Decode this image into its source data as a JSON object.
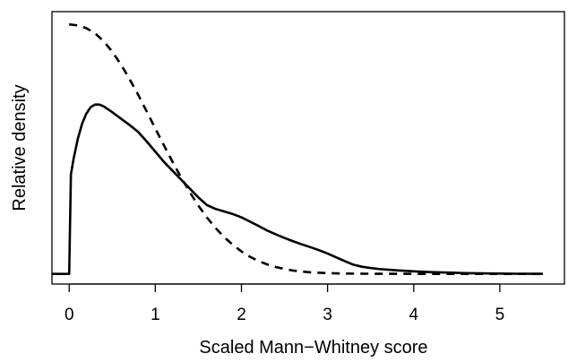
{
  "chart_data": {
    "type": "line",
    "title": "",
    "xlabel": "Scaled Mann−Whitney score",
    "ylabel": "Relative density",
    "xlim": [
      -0.2,
      5.75
    ],
    "ylim": [
      -0.04,
      1.03
    ],
    "x_ticks": [
      0,
      1,
      2,
      3,
      4,
      5
    ],
    "x_tick_labels": [
      "0",
      "1",
      "2",
      "3",
      "4",
      "5"
    ],
    "y_ticks_shown": false,
    "grid": false,
    "legend": "none",
    "series": [
      {
        "style": "solid",
        "color": "#000000",
        "points": [
          [
            -0.2,
            0.0
          ],
          [
            0.0,
            0.0
          ],
          [
            0.0,
            0.0
          ],
          [
            0.02,
            0.39
          ],
          [
            0.05,
            0.45
          ],
          [
            0.1,
            0.53
          ],
          [
            0.15,
            0.59
          ],
          [
            0.2,
            0.63
          ],
          [
            0.25,
            0.655
          ],
          [
            0.3,
            0.665
          ],
          [
            0.35,
            0.665
          ],
          [
            0.4,
            0.658
          ],
          [
            0.5,
            0.635
          ],
          [
            0.6,
            0.61
          ],
          [
            0.7,
            0.585
          ],
          [
            0.8,
            0.558
          ],
          [
            0.9,
            0.52
          ],
          [
            1.0,
            0.48
          ],
          [
            1.1,
            0.44
          ],
          [
            1.2,
            0.405
          ],
          [
            1.3,
            0.37
          ],
          [
            1.4,
            0.335
          ],
          [
            1.5,
            0.3
          ],
          [
            1.6,
            0.27
          ],
          [
            1.7,
            0.255
          ],
          [
            1.8,
            0.245
          ],
          [
            1.9,
            0.235
          ],
          [
            2.0,
            0.222
          ],
          [
            2.1,
            0.205
          ],
          [
            2.2,
            0.188
          ],
          [
            2.3,
            0.17
          ],
          [
            2.4,
            0.155
          ],
          [
            2.5,
            0.141
          ],
          [
            2.6,
            0.128
          ],
          [
            2.7,
            0.116
          ],
          [
            2.8,
            0.105
          ],
          [
            2.9,
            0.093
          ],
          [
            3.0,
            0.08
          ],
          [
            3.1,
            0.065
          ],
          [
            3.2,
            0.05
          ],
          [
            3.3,
            0.036
          ],
          [
            3.4,
            0.028
          ],
          [
            3.5,
            0.023
          ],
          [
            3.6,
            0.019
          ],
          [
            3.8,
            0.014
          ],
          [
            4.0,
            0.01
          ],
          [
            4.2,
            0.007
          ],
          [
            4.4,
            0.005
          ],
          [
            4.6,
            0.003
          ],
          [
            4.8,
            0.002
          ],
          [
            5.0,
            0.001
          ],
          [
            5.2,
            0.0005
          ],
          [
            5.5,
            0.0002
          ]
        ]
      },
      {
        "style": "dashed",
        "color": "#000000",
        "points": [
          [
            0.0,
            0.98
          ],
          [
            0.1,
            0.976
          ],
          [
            0.2,
            0.965
          ],
          [
            0.3,
            0.945
          ],
          [
            0.4,
            0.914
          ],
          [
            0.5,
            0.873
          ],
          [
            0.6,
            0.823
          ],
          [
            0.7,
            0.766
          ],
          [
            0.8,
            0.704
          ],
          [
            0.9,
            0.638
          ],
          [
            1.0,
            0.571
          ],
          [
            1.1,
            0.505
          ],
          [
            1.2,
            0.44
          ],
          [
            1.3,
            0.378
          ],
          [
            1.4,
            0.321
          ],
          [
            1.5,
            0.268
          ],
          [
            1.6,
            0.221
          ],
          [
            1.7,
            0.18
          ],
          [
            1.8,
            0.144
          ],
          [
            1.9,
            0.114
          ],
          [
            2.0,
            0.088
          ],
          [
            2.1,
            0.067
          ],
          [
            2.2,
            0.05
          ],
          [
            2.3,
            0.037
          ],
          [
            2.4,
            0.027
          ],
          [
            2.5,
            0.019
          ],
          [
            2.6,
            0.013
          ],
          [
            2.7,
            0.009
          ],
          [
            2.8,
            0.006
          ],
          [
            3.0,
            0.003
          ],
          [
            3.2,
            0.0012
          ],
          [
            3.5,
            0.0004
          ],
          [
            4.0,
            0.0
          ],
          [
            4.5,
            0.0
          ],
          [
            5.0,
            0.0
          ],
          [
            5.5,
            0.0
          ]
        ]
      }
    ]
  }
}
